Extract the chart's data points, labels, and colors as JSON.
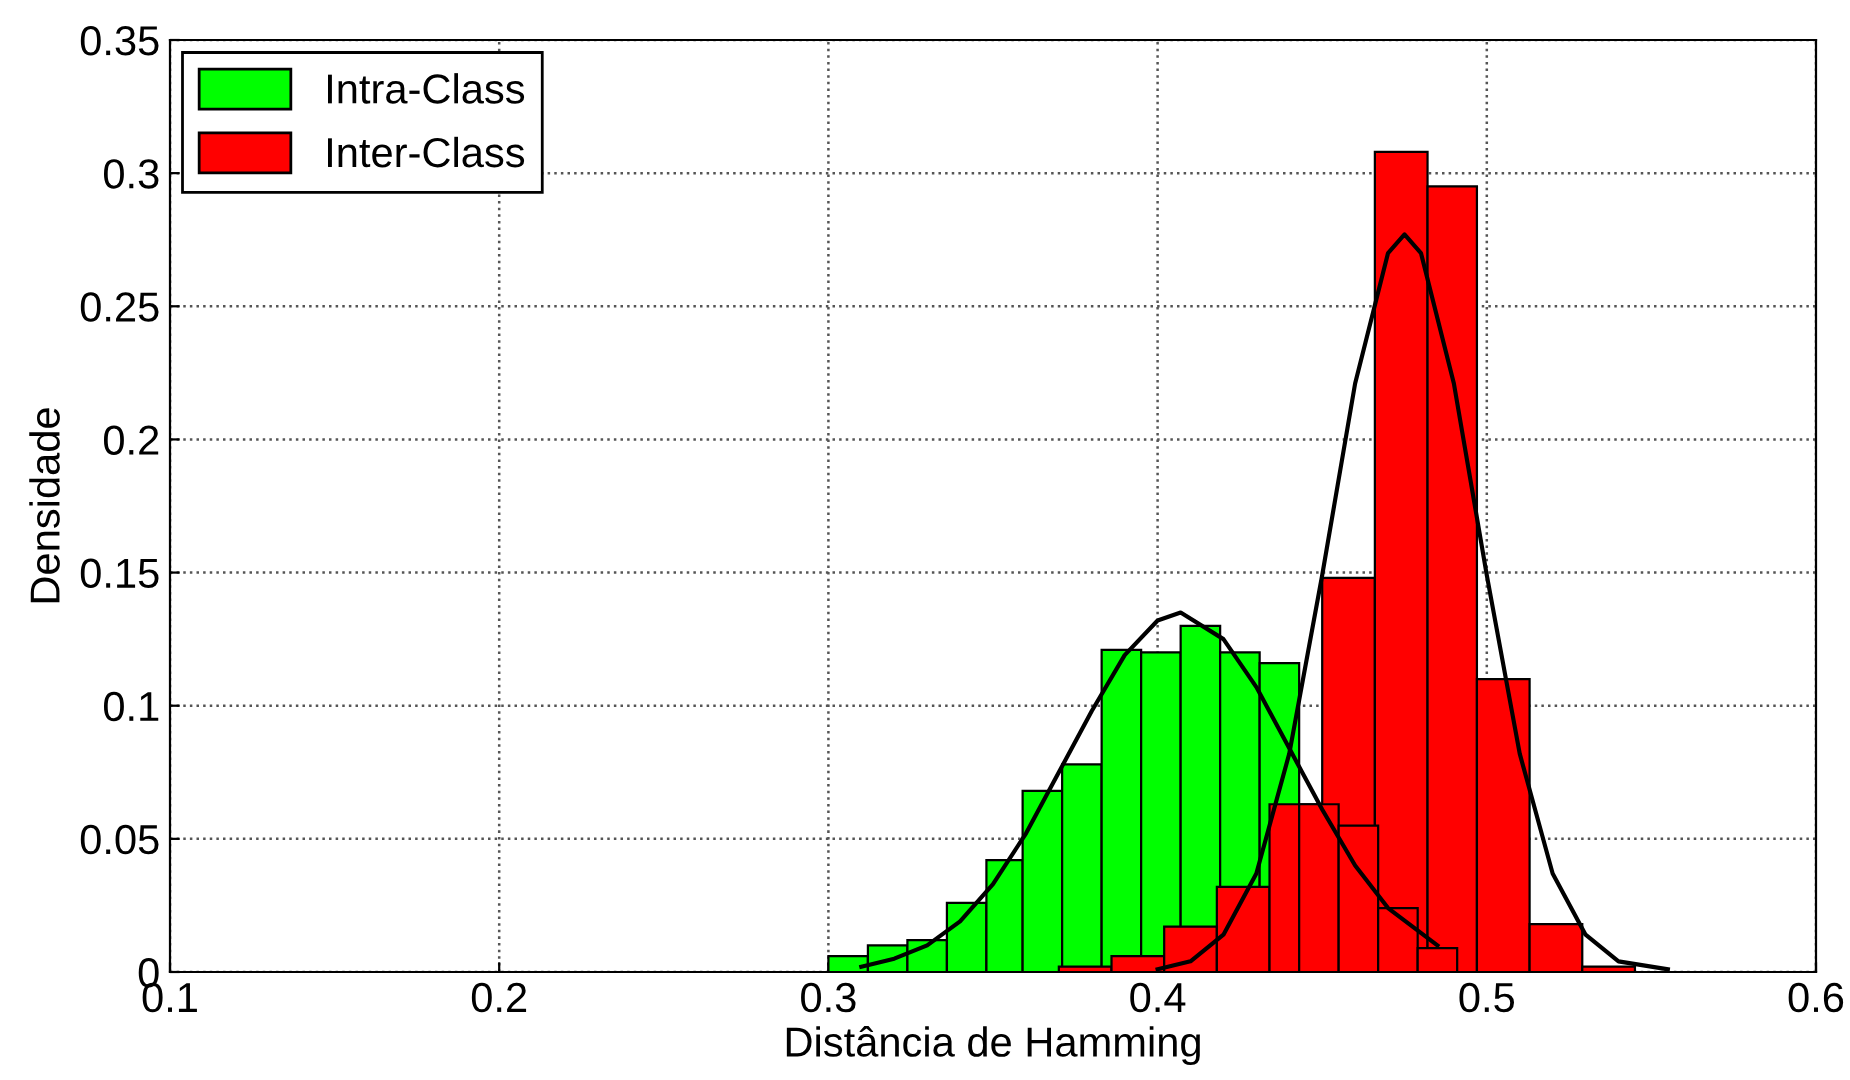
{
  "chart_data": {
    "type": "histogram",
    "xlabel": "Distância de Hamming",
    "ylabel": "Densidade",
    "xlim": [
      0.1,
      0.6
    ],
    "xticks": [
      0.1,
      0.2,
      0.3,
      0.4,
      0.5,
      0.6
    ],
    "ylim": [
      0,
      0.35
    ],
    "yticks": [
      0,
      0.05,
      0.1,
      0.15,
      0.2,
      0.25,
      0.3,
      0.35
    ],
    "grid": true,
    "legend": "top left",
    "series": [
      {
        "name": "Intra-Class",
        "color": "#00ff00",
        "bins": [
          0.3,
          0.312,
          0.324,
          0.336,
          0.348,
          0.359,
          0.371,
          0.383,
          0.395,
          0.407,
          0.419,
          0.431,
          0.443,
          0.455,
          0.467,
          0.479,
          0.491
        ],
        "values": [
          0.006,
          0.01,
          0.012,
          0.026,
          0.042,
          0.068,
          0.078,
          0.121,
          0.12,
          0.13,
          0.12,
          0.116,
          0.063,
          0.055,
          0.024,
          0.009
        ],
        "colors": [
          "#00ff00",
          "#00ff00",
          "#00ff00",
          "#00ff00",
          "#00ff00",
          "#00ff00",
          "#00ff00",
          "#00ff00",
          "#00ff00",
          "#00ff00",
          "#00ff00",
          "#00ff00",
          "#ff0000",
          "#ff0000",
          "#ff0000",
          "#ff0000"
        ]
      },
      {
        "name": "Inter-Class",
        "color": "#ff0000",
        "bins": [
          0.37,
          0.386,
          0.402,
          0.418,
          0.434,
          0.45,
          0.466,
          0.482,
          0.497,
          0.513,
          0.529,
          0.545
        ],
        "values": [
          0.002,
          0.006,
          0.017,
          0.032,
          0.063,
          0.148,
          0.308,
          0.295,
          0.11,
          0.018,
          0.002
        ]
      },
      {
        "type": "line",
        "color": "#000000",
        "x": [
          0.31,
          0.32,
          0.33,
          0.34,
          0.35,
          0.36,
          0.37,
          0.38,
          0.39,
          0.4,
          0.407,
          0.42,
          0.43,
          0.44,
          0.45,
          0.46,
          0.47,
          0.485
        ],
        "values": [
          0.002,
          0.005,
          0.01,
          0.019,
          0.033,
          0.052,
          0.075,
          0.098,
          0.119,
          0.132,
          0.135,
          0.125,
          0.107,
          0.084,
          0.061,
          0.04,
          0.024,
          0.01
        ]
      },
      {
        "type": "line",
        "color": "#000000",
        "x": [
          0.4,
          0.41,
          0.42,
          0.43,
          0.44,
          0.45,
          0.46,
          0.47,
          0.475,
          0.48,
          0.49,
          0.5,
          0.51,
          0.52,
          0.53,
          0.54,
          0.555
        ],
        "values": [
          0.001,
          0.004,
          0.014,
          0.037,
          0.082,
          0.149,
          0.221,
          0.27,
          0.277,
          0.27,
          0.221,
          0.149,
          0.082,
          0.037,
          0.014,
          0.004,
          0.001
        ]
      }
    ]
  }
}
